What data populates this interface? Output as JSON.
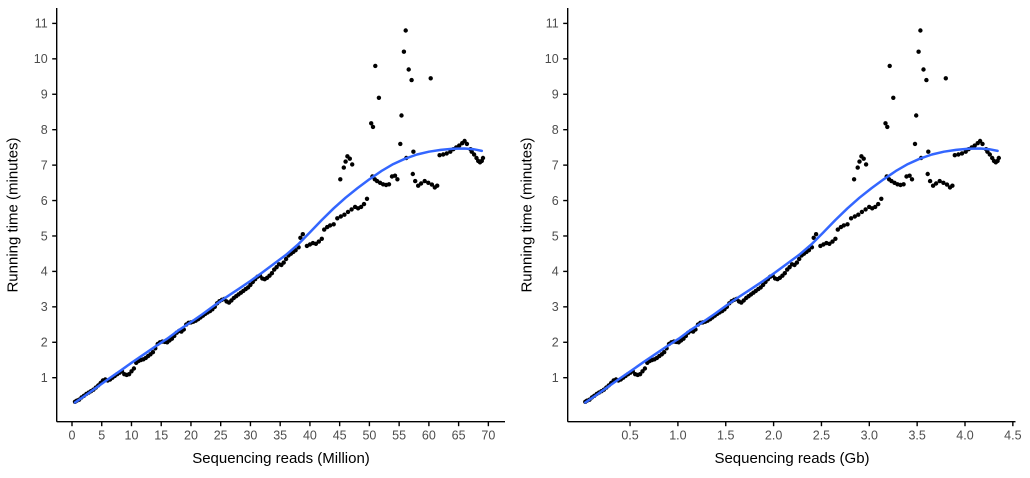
{
  "figure": {
    "background": "#ffffff",
    "point_color": "#000000",
    "curve_color": "#3366FF",
    "axis_color": "#000000",
    "tick_label_color": "#4d4d4d",
    "title_color": "#000000"
  },
  "chart_data": [
    {
      "type": "scatter",
      "title": "",
      "xlabel": "Sequencing reads (Million)",
      "ylabel": "Running time (minutes)",
      "x_unit": "Million reads",
      "y_unit": "minutes",
      "x_index": 0,
      "y_index": 2,
      "xlim": [
        -2.6,
        72.8
      ],
      "ylim": [
        -0.25,
        11.45
      ],
      "grid": false,
      "legend": false,
      "smoother": "loess",
      "x_tick_values": [
        0,
        5,
        10,
        15,
        20,
        25,
        30,
        35,
        40,
        45,
        50,
        55,
        60,
        65,
        70
      ],
      "x_tick_labels": [
        "0",
        "5",
        "10",
        "15",
        "20",
        "25",
        "30",
        "35",
        "40",
        "45",
        "50",
        "55",
        "60",
        "65",
        "70"
      ],
      "y_tick_values": [
        1,
        2,
        3,
        4,
        5,
        6,
        7,
        8,
        9,
        10,
        11
      ],
      "y_tick_labels": [
        "1",
        "2",
        "3",
        "4",
        "5",
        "6",
        "7",
        "8",
        "9",
        "10",
        "11"
      ]
    },
    {
      "type": "scatter",
      "title": "",
      "xlabel": "Sequencing reads (Gb)",
      "ylabel": "Running time (minutes)",
      "x_unit": "Gb",
      "y_unit": "minutes",
      "x_index": 1,
      "y_index": 2,
      "xlim": [
        -0.16,
        4.58
      ],
      "ylim": [
        -0.25,
        11.45
      ],
      "grid": false,
      "legend": false,
      "smoother": "loess",
      "x_tick_values": [
        0.5,
        1.0,
        1.5,
        2.0,
        2.5,
        3.0,
        3.5,
        4.0,
        4.5
      ],
      "x_tick_labels": [
        "0.5",
        "1.0",
        "1.5",
        "2.0",
        "2.5",
        "3.0",
        "3.5",
        "4.0",
        "4.5"
      ],
      "y_tick_values": [
        1,
        2,
        3,
        4,
        5,
        6,
        7,
        8,
        9,
        10,
        11
      ],
      "y_tick_labels": [
        "1",
        "2",
        "3",
        "4",
        "5",
        "6",
        "7",
        "8",
        "9",
        "10",
        "11"
      ]
    }
  ],
  "scatter_points": {
    "columns": [
      "reads_million",
      "reads_gb",
      "running_time_minutes"
    ],
    "rows": [
      [
        0.5,
        0.032,
        0.32
      ],
      [
        0.8,
        0.05,
        0.35
      ],
      [
        1.2,
        0.076,
        0.38
      ],
      [
        1.6,
        0.101,
        0.44
      ],
      [
        2.0,
        0.126,
        0.49
      ],
      [
        2.4,
        0.151,
        0.54
      ],
      [
        2.8,
        0.176,
        0.58
      ],
      [
        3.2,
        0.202,
        0.62
      ],
      [
        3.6,
        0.227,
        0.66
      ],
      [
        4.0,
        0.252,
        0.72
      ],
      [
        4.4,
        0.277,
        0.78
      ],
      [
        4.8,
        0.302,
        0.85
      ],
      [
        5.2,
        0.328,
        0.92
      ],
      [
        5.6,
        0.353,
        0.95
      ],
      [
        6.0,
        0.378,
        0.92
      ],
      [
        6.4,
        0.403,
        0.95
      ],
      [
        6.8,
        0.428,
        1.0
      ],
      [
        7.2,
        0.454,
        1.05
      ],
      [
        7.6,
        0.479,
        1.1
      ],
      [
        8.0,
        0.504,
        1.14
      ],
      [
        8.4,
        0.529,
        1.18
      ],
      [
        8.8,
        0.554,
        1.1
      ],
      [
        9.2,
        0.58,
        1.08
      ],
      [
        9.6,
        0.605,
        1.1
      ],
      [
        10.0,
        0.63,
        1.18
      ],
      [
        10.4,
        0.655,
        1.26
      ],
      [
        10.8,
        0.68,
        1.42
      ],
      [
        11.2,
        0.706,
        1.47
      ],
      [
        11.6,
        0.731,
        1.5
      ],
      [
        12.0,
        0.756,
        1.52
      ],
      [
        12.4,
        0.781,
        1.56
      ],
      [
        12.8,
        0.806,
        1.61
      ],
      [
        13.2,
        0.832,
        1.66
      ],
      [
        13.6,
        0.857,
        1.72
      ],
      [
        14.0,
        0.882,
        1.83
      ],
      [
        14.4,
        0.907,
        1.95
      ],
      [
        14.8,
        0.932,
        2.0
      ],
      [
        15.2,
        0.958,
        2.02
      ],
      [
        15.6,
        0.983,
        2.01
      ],
      [
        16.0,
        1.008,
        2.0
      ],
      [
        16.4,
        1.033,
        2.05
      ],
      [
        16.8,
        1.058,
        2.1
      ],
      [
        17.2,
        1.084,
        2.18
      ],
      [
        17.6,
        1.109,
        2.27
      ],
      [
        18.0,
        1.134,
        2.32
      ],
      [
        18.4,
        1.159,
        2.3
      ],
      [
        18.8,
        1.184,
        2.36
      ],
      [
        19.2,
        1.21,
        2.5
      ],
      [
        19.6,
        1.235,
        2.55
      ],
      [
        20.0,
        1.26,
        2.56
      ],
      [
        20.4,
        1.285,
        2.58
      ],
      [
        20.8,
        1.31,
        2.61
      ],
      [
        21.2,
        1.336,
        2.65
      ],
      [
        21.6,
        1.361,
        2.7
      ],
      [
        22.0,
        1.386,
        2.75
      ],
      [
        22.4,
        1.411,
        2.8
      ],
      [
        22.8,
        1.436,
        2.84
      ],
      [
        23.2,
        1.462,
        2.88
      ],
      [
        23.6,
        1.487,
        2.93
      ],
      [
        24.0,
        1.512,
        3.0
      ],
      [
        24.4,
        1.537,
        3.1
      ],
      [
        24.8,
        1.562,
        3.16
      ],
      [
        25.2,
        1.588,
        3.2
      ],
      [
        25.6,
        1.613,
        3.22
      ],
      [
        26.0,
        1.638,
        3.15
      ],
      [
        26.4,
        1.663,
        3.12
      ],
      [
        26.8,
        1.688,
        3.18
      ],
      [
        27.2,
        1.714,
        3.25
      ],
      [
        27.6,
        1.739,
        3.3
      ],
      [
        28.0,
        1.764,
        3.35
      ],
      [
        28.4,
        1.789,
        3.4
      ],
      [
        28.8,
        1.814,
        3.45
      ],
      [
        29.2,
        1.84,
        3.5
      ],
      [
        29.6,
        1.865,
        3.55
      ],
      [
        30.0,
        1.89,
        3.62
      ],
      [
        30.4,
        1.915,
        3.7
      ],
      [
        30.8,
        1.94,
        3.78
      ],
      [
        31.2,
        1.966,
        3.85
      ],
      [
        31.6,
        1.991,
        3.88
      ],
      [
        32.0,
        2.016,
        3.8
      ],
      [
        32.4,
        2.041,
        3.78
      ],
      [
        32.8,
        2.066,
        3.82
      ],
      [
        33.2,
        2.092,
        3.88
      ],
      [
        33.6,
        2.117,
        3.95
      ],
      [
        34.0,
        2.142,
        4.05
      ],
      [
        34.4,
        2.167,
        4.12
      ],
      [
        34.8,
        2.192,
        4.2
      ],
      [
        35.2,
        2.218,
        4.18
      ],
      [
        35.6,
        2.243,
        4.25
      ],
      [
        36.0,
        2.268,
        4.35
      ],
      [
        36.4,
        2.293,
        4.45
      ],
      [
        36.8,
        2.318,
        4.5
      ],
      [
        37.2,
        2.344,
        4.55
      ],
      [
        37.6,
        2.369,
        4.6
      ],
      [
        38.1,
        2.4,
        4.68
      ],
      [
        38.4,
        2.419,
        4.95
      ],
      [
        38.8,
        2.444,
        5.05
      ],
      [
        39.5,
        2.489,
        4.72
      ],
      [
        40.0,
        2.52,
        4.76
      ],
      [
        40.5,
        2.552,
        4.8
      ],
      [
        41.0,
        2.583,
        4.78
      ],
      [
        41.5,
        2.615,
        4.84
      ],
      [
        42.0,
        2.646,
        4.92
      ],
      [
        42.4,
        2.671,
        5.18
      ],
      [
        42.9,
        2.703,
        5.25
      ],
      [
        43.4,
        2.734,
        5.3
      ],
      [
        44.0,
        2.772,
        5.33
      ],
      [
        44.6,
        2.81,
        5.5
      ],
      [
        45.2,
        2.848,
        5.55
      ],
      [
        45.8,
        2.885,
        5.6
      ],
      [
        46.4,
        2.923,
        5.68
      ],
      [
        47.0,
        2.961,
        5.75
      ],
      [
        47.6,
        2.999,
        5.82
      ],
      [
        48.1,
        3.03,
        5.78
      ],
      [
        48.6,
        3.062,
        5.82
      ],
      [
        49.1,
        3.093,
        5.9
      ],
      [
        49.6,
        3.125,
        6.05
      ],
      [
        45.1,
        2.841,
        6.6
      ],
      [
        45.7,
        2.879,
        6.93
      ],
      [
        46.0,
        2.898,
        7.1
      ],
      [
        46.3,
        2.917,
        7.25
      ],
      [
        46.7,
        2.942,
        7.18
      ],
      [
        47.1,
        2.967,
        7.02
      ],
      [
        50.3,
        3.169,
        8.18
      ],
      [
        50.6,
        3.188,
        8.08
      ],
      [
        51.0,
        3.213,
        9.8
      ],
      [
        51.6,
        3.251,
        8.9
      ],
      [
        50.5,
        3.182,
        6.68
      ],
      [
        50.9,
        3.207,
        6.6
      ],
      [
        51.3,
        3.232,
        6.55
      ],
      [
        51.8,
        3.263,
        6.5
      ],
      [
        52.3,
        3.295,
        6.46
      ],
      [
        52.8,
        3.326,
        6.44
      ],
      [
        53.3,
        3.358,
        6.46
      ],
      [
        53.8,
        3.389,
        6.68
      ],
      [
        54.3,
        3.421,
        6.7
      ],
      [
        54.7,
        3.446,
        6.6
      ],
      [
        55.2,
        3.478,
        7.6
      ],
      [
        55.4,
        3.49,
        8.4
      ],
      [
        55.8,
        3.515,
        10.2
      ],
      [
        56.1,
        3.534,
        10.8
      ],
      [
        56.6,
        3.566,
        9.7
      ],
      [
        57.1,
        3.597,
        9.4
      ],
      [
        60.3,
        3.799,
        9.45
      ],
      [
        56.2,
        3.541,
        7.2
      ],
      [
        57.4,
        3.616,
        7.38
      ],
      [
        57.3,
        3.61,
        6.75
      ],
      [
        57.7,
        3.635,
        6.55
      ],
      [
        58.2,
        3.667,
        6.42
      ],
      [
        58.7,
        3.698,
        6.48
      ],
      [
        59.3,
        3.736,
        6.55
      ],
      [
        59.9,
        3.774,
        6.5
      ],
      [
        60.5,
        3.812,
        6.45
      ],
      [
        61.0,
        3.843,
        6.37
      ],
      [
        61.4,
        3.868,
        6.42
      ],
      [
        61.8,
        3.893,
        7.28
      ],
      [
        62.4,
        3.931,
        7.3
      ],
      [
        63.0,
        3.969,
        7.33
      ],
      [
        63.6,
        4.007,
        7.38
      ],
      [
        64.1,
        4.038,
        7.45
      ],
      [
        64.6,
        4.07,
        7.5
      ],
      [
        65.1,
        4.101,
        7.55
      ],
      [
        65.6,
        4.133,
        7.62
      ],
      [
        66.0,
        4.158,
        7.68
      ],
      [
        66.4,
        4.183,
        7.6
      ],
      [
        67.0,
        4.221,
        7.45
      ],
      [
        67.2,
        4.234,
        7.38
      ],
      [
        67.6,
        4.259,
        7.3
      ],
      [
        68.0,
        4.284,
        7.2
      ],
      [
        68.3,
        4.303,
        7.12
      ],
      [
        68.6,
        4.322,
        7.08
      ],
      [
        68.9,
        4.341,
        7.12
      ],
      [
        69.1,
        4.353,
        7.2
      ]
    ]
  },
  "smooth_curve": {
    "columns": [
      "reads_million",
      "reads_gb",
      "running_time_minutes"
    ],
    "rows": [
      [
        0.5,
        0.032,
        0.3
      ],
      [
        2,
        0.126,
        0.47
      ],
      [
        4,
        0.252,
        0.71
      ],
      [
        6,
        0.378,
        0.95
      ],
      [
        8,
        0.504,
        1.18
      ],
      [
        10,
        0.63,
        1.42
      ],
      [
        12,
        0.756,
        1.65
      ],
      [
        14,
        0.882,
        1.88
      ],
      [
        16,
        1.008,
        2.1
      ],
      [
        18,
        1.134,
        2.35
      ],
      [
        20,
        1.26,
        2.57
      ],
      [
        22,
        1.386,
        2.8
      ],
      [
        24,
        1.512,
        3.05
      ],
      [
        26,
        1.638,
        3.28
      ],
      [
        28,
        1.764,
        3.5
      ],
      [
        30,
        1.89,
        3.73
      ],
      [
        32,
        2.016,
        3.97
      ],
      [
        34,
        2.142,
        4.22
      ],
      [
        36,
        2.268,
        4.47
      ],
      [
        38,
        2.394,
        4.76
      ],
      [
        40,
        2.52,
        5.1
      ],
      [
        42,
        2.646,
        5.45
      ],
      [
        44,
        2.772,
        5.78
      ],
      [
        46,
        2.898,
        6.08
      ],
      [
        48,
        3.024,
        6.35
      ],
      [
        50,
        3.15,
        6.6
      ],
      [
        52,
        3.276,
        6.83
      ],
      [
        54,
        3.402,
        7.03
      ],
      [
        56,
        3.528,
        7.18
      ],
      [
        58,
        3.654,
        7.3
      ],
      [
        60,
        3.78,
        7.38
      ],
      [
        62,
        3.906,
        7.43
      ],
      [
        64,
        4.032,
        7.46
      ],
      [
        66,
        4.158,
        7.47
      ],
      [
        67.5,
        4.253,
        7.45
      ],
      [
        68.9,
        4.341,
        7.4
      ]
    ]
  }
}
